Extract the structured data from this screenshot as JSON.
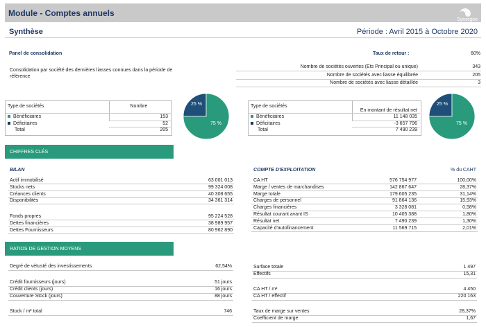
{
  "header": {
    "title": "Module - Comptes annuels",
    "logo": "Synergee"
  },
  "subheader": {
    "title": "Synthèse",
    "period": "Période : Avril 2015 à Octobre 2020"
  },
  "panel": {
    "title": "Panel de consolidation",
    "description": "Consolidation par société des dernières liasses connues dans la période de référence",
    "return_label": "Taux de retour :",
    "return_value": "60%",
    "rows": [
      [
        "Nombre de sociétés ouvertes (Ets Principal ou unique)",
        "343"
      ],
      [
        "Nombre de sociétés avec liasse équilibrée",
        "205"
      ],
      [
        "Nombre de sociétés avec liasse détaillée",
        "3"
      ]
    ]
  },
  "table1": {
    "headers": [
      "Type de sociétés",
      "Nombre"
    ],
    "rows": [
      [
        "Bénéficiaires",
        "153"
      ],
      [
        "Déficitaires",
        "52"
      ],
      [
        "Total",
        "205"
      ]
    ]
  },
  "pie1": {
    "values": [
      25,
      75
    ],
    "value_labels": [
      "25 %",
      "75 %"
    ],
    "colors": [
      "#1f4e79",
      "#2a9a7c"
    ]
  },
  "table2": {
    "headers": [
      "Type de sociétés",
      "En montant de résultat net"
    ],
    "rows": [
      [
        "Bénéficiaires",
        "11 148 035"
      ],
      [
        "Déficitaires",
        "-3 657 796"
      ],
      [
        "Total",
        "7 490 239"
      ]
    ]
  },
  "pie2": {
    "values": [
      25,
      75
    ],
    "value_labels": [
      "25 %",
      "75 %"
    ],
    "colors": [
      "#1f4e79",
      "#2a9a7c"
    ]
  },
  "chiffres": {
    "title": "CHIFFRES CLÉS",
    "bilan_title": "BILAN",
    "bilan": [
      [
        [
          "Actif immobilisé",
          "63 001 013"
        ],
        [
          "Stocks nets",
          "99 324 008"
        ],
        [
          "Créances clients",
          "40 308 655"
        ],
        [
          "Disponibilités",
          "34 361 314"
        ]
      ],
      [
        [
          "Fonds propres",
          "95 224 528"
        ],
        [
          "Dettes financières",
          "38 989 957"
        ],
        [
          "Dettes Fournisseurs",
          "80 962 890"
        ]
      ]
    ],
    "compte_title": "COMPTE D'EXPLOITATION",
    "compte_col": "% du CAHT",
    "compte": [
      [
        "CA HT",
        "576 754 977",
        "100,00%"
      ],
      [
        "Marge / ventes de marchandises",
        "142 867 647",
        "28,37%"
      ],
      [
        "Marge totale",
        "179 605 235",
        "31,14%"
      ],
      [
        "Charges de personnel",
        "91 864 136",
        "15,93%"
      ],
      [
        "Charges financières",
        "3 328 081",
        "0,58%"
      ],
      [
        "Résultat courant avant IS",
        "10 405 388",
        "1,80%"
      ],
      [
        "Résultat net",
        "7 490 239",
        "1,30%"
      ],
      [
        "Capacité d'autofinancement",
        "11 569 715",
        "2,01%"
      ]
    ]
  },
  "ratios": {
    "title": "RATIOS DE GESTION MOYENS",
    "left": [
      [
        [
          "Degré de vétusté des investissements",
          "62,54%"
        ]
      ],
      [
        [
          "Crédit fournisseurs (jours)",
          "51 jours"
        ],
        [
          "Crédit clients (jours)",
          "16 jours"
        ],
        [
          "Couverture Stock (jours)",
          "88 jours"
        ]
      ],
      [
        [
          "Stock / m² total",
          "746"
        ]
      ]
    ],
    "right": [
      [
        [
          "Surface totale",
          "1 497"
        ],
        [
          "Effectifs",
          "15,31"
        ]
      ],
      [
        [
          "CA HT / m²",
          "4 450"
        ],
        [
          "CA HT / effectif",
          "220 163"
        ]
      ],
      [
        [
          "Taux de marge sur ventes",
          "28,37%"
        ],
        [
          "Coefficient de marge",
          "1,67"
        ]
      ]
    ]
  }
}
